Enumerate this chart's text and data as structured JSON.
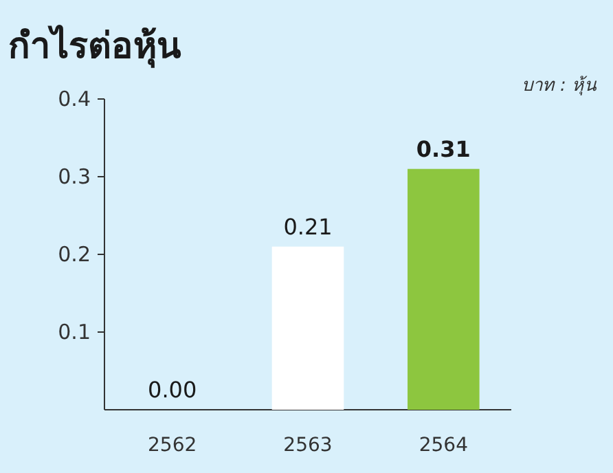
{
  "chart_data": {
    "type": "bar",
    "title": "กำไรต่อหุ้น",
    "ylabel": "บาท : หุ้น",
    "categories": [
      "2562",
      "2563",
      "2564"
    ],
    "values": [
      0.0,
      0.21,
      0.31
    ],
    "colors": [
      "#ffffff",
      "#ffffff",
      "#8dc63f"
    ],
    "value_labels": [
      "0.00",
      "0.21",
      "**0.31**"
    ],
    "ylim": [
      0,
      0.4
    ],
    "yticks": [
      {
        "value": 0.1,
        "label": "0.1"
      },
      {
        "value": 0.2,
        "label": "0.2"
      },
      {
        "value": 0.3,
        "label": "0.3"
      },
      {
        "value": 0.4,
        "label": "0.4"
      }
    ],
    "grid": false
  }
}
